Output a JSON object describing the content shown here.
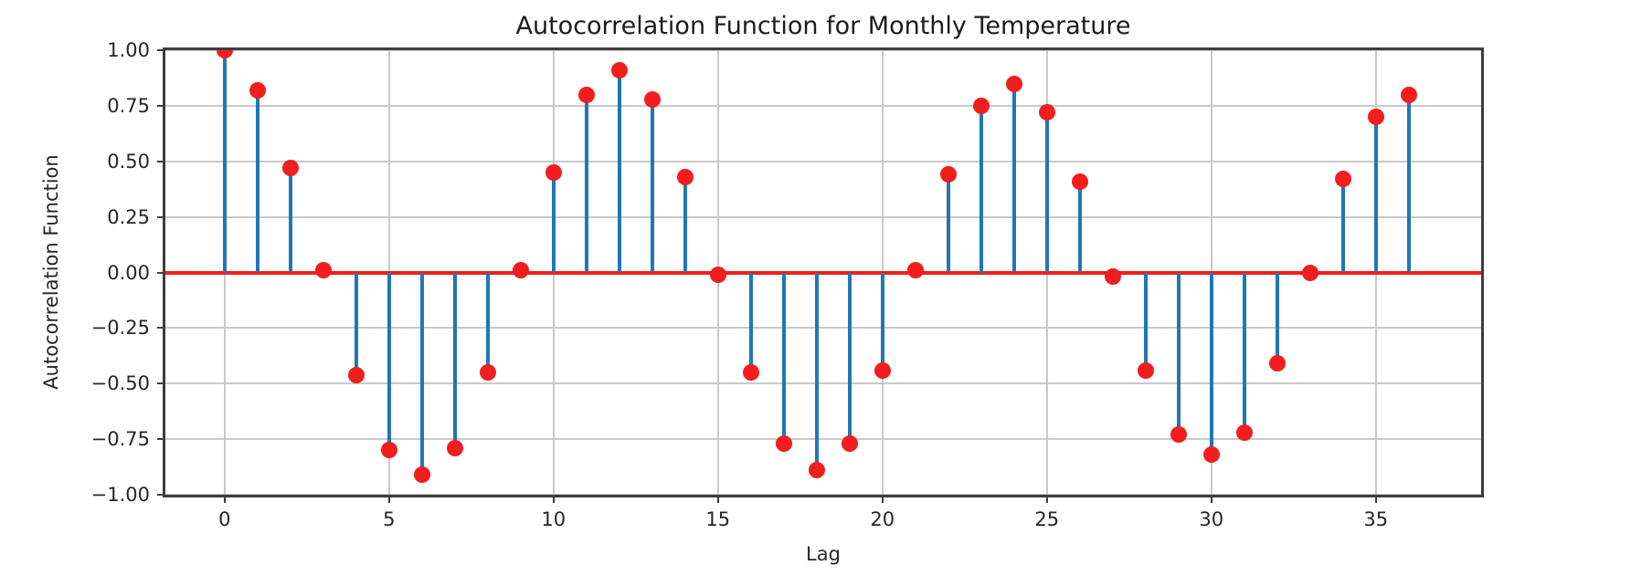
{
  "chart_data": {
    "type": "stem",
    "title": "Autocorrelation Function for Monthly Temperature",
    "xlabel": "Lag",
    "ylabel": "Autocorrelation Function",
    "x": [
      0,
      1,
      2,
      3,
      4,
      5,
      6,
      7,
      8,
      9,
      10,
      11,
      12,
      13,
      14,
      15,
      16,
      17,
      18,
      19,
      20,
      21,
      22,
      23,
      24,
      25,
      26,
      27,
      28,
      29,
      30,
      31,
      32,
      33,
      34,
      35,
      36
    ],
    "values": [
      1.0,
      0.82,
      0.47,
      0.01,
      -0.46,
      -0.8,
      -0.91,
      -0.79,
      -0.45,
      0.01,
      0.45,
      0.8,
      0.91,
      0.78,
      0.43,
      -0.01,
      -0.45,
      -0.77,
      -0.89,
      -0.77,
      -0.44,
      0.01,
      0.44,
      0.75,
      0.85,
      0.72,
      0.41,
      -0.02,
      -0.44,
      -0.73,
      -0.82,
      -0.72,
      -0.41,
      0.0,
      0.42,
      0.7,
      0.8
    ],
    "xlim": [
      -1.8,
      38.2
    ],
    "ylim": [
      -1.0,
      1.0
    ],
    "xticks": [
      0,
      5,
      10,
      15,
      20,
      25,
      30,
      35
    ],
    "yticks": [
      -1.0,
      -0.75,
      -0.5,
      -0.25,
      0.0,
      0.25,
      0.5,
      0.75,
      1.0
    ],
    "ytick_decimals": 2,
    "grid": true,
    "legend": "none",
    "baseline_y": 0,
    "colors": {
      "stem": "#2077b4",
      "marker": "#f21d1d",
      "baseline": "#f21d1d",
      "grid": "#c9c9c9",
      "spine": "#3d3d3d",
      "text": "#262626"
    }
  }
}
